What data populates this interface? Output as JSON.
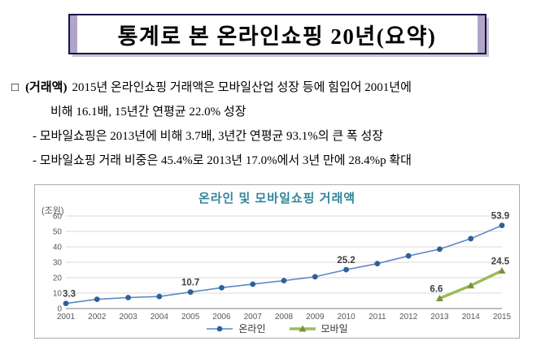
{
  "colors": {
    "accent_bar": "#b1a4c8",
    "title_border": "#14144a",
    "chart_title": "#31849b",
    "text": "#000000"
  },
  "title_box": {
    "text": "통계로  본  온라인쇼핑  20년(요약)"
  },
  "body": {
    "marker": "□",
    "lead_bold": "(거래액)",
    "lead_text": "2015년 온라인쇼핑 거래액은 모바일산업 성장 등에 힘입어 2001년에",
    "lead_text2": "비해 16.1배, 15년간 연평균 22.0% 성장",
    "sub_items": [
      "- 모바일쇼핑은 2013년에 비해 3.7배, 3년간 연평균 93.1%의 큰 폭 성장",
      "- 모바일쇼핑 거래 비중은 45.4%로 2013년 17.0%에서 3년 만에 28.4%p 확대"
    ]
  },
  "chart_data": {
    "type": "line",
    "title": "온라인 및 모바일쇼핑 거래액",
    "unit_label": "(조원)",
    "x": [
      2001,
      2002,
      2003,
      2004,
      2005,
      2006,
      2007,
      2008,
      2009,
      2010,
      2011,
      2012,
      2013,
      2014,
      2015
    ],
    "ylim": [
      0,
      60
    ],
    "yticks": [
      0,
      10,
      20,
      30,
      40,
      50,
      60
    ],
    "grid": true,
    "legend_position": "bottom",
    "series": [
      {
        "name": "온라인",
        "color": "#5b87c5",
        "marker": "circle",
        "marker_color": "#2e5f9e",
        "line_width": 1.6,
        "values": [
          3.3,
          6.0,
          7.1,
          7.8,
          10.7,
          13.5,
          15.8,
          18.1,
          20.6,
          25.2,
          29.1,
          34.1,
          38.5,
          45.3,
          53.9
        ]
      },
      {
        "name": "모바일",
        "color": "#9bbb59",
        "marker": "triangle",
        "marker_color": "#77933c",
        "line_width": 3.5,
        "values": [
          null,
          null,
          null,
          null,
          null,
          null,
          null,
          null,
          null,
          null,
          null,
          null,
          6.6,
          14.9,
          24.5
        ]
      }
    ],
    "point_labels": [
      {
        "series": "온라인",
        "x": 2001,
        "y": 3.3,
        "text": "3.3",
        "dx": 4
      },
      {
        "series": "온라인",
        "x": 2005,
        "y": 10.7,
        "text": "10.7"
      },
      {
        "series": "온라인",
        "x": 2010,
        "y": 25.2,
        "text": "25.2"
      },
      {
        "series": "온라인",
        "x": 2015,
        "y": 53.9,
        "text": "53.9",
        "dx": -2
      },
      {
        "series": "모바일",
        "x": 2013,
        "y": 6.6,
        "text": "6.6",
        "dx": -4
      },
      {
        "series": "모바일",
        "x": 2015,
        "y": 24.5,
        "text": "24.5",
        "dx": -2
      }
    ]
  }
}
